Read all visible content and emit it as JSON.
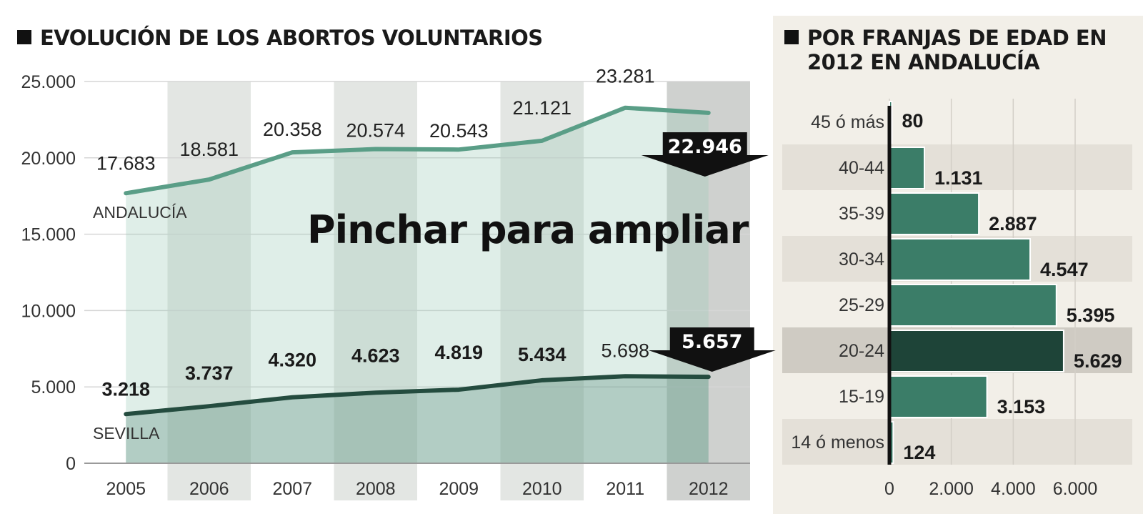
{
  "overlay_text": "Pinchar para ampliar",
  "colors": {
    "andalucia_line": "#5a9e87",
    "sevilla_line": "#244c3f",
    "bar": "#3b7d68",
    "bar_highlight": "#1e4438",
    "right_panel_bg": "#f2efe8"
  },
  "chart_data": [
    {
      "type": "line",
      "title": "EVOLUCIÓN DE LOS ABORTOS VOLUNTARIOS",
      "x": [
        "2005",
        "2006",
        "2007",
        "2008",
        "2009",
        "2010",
        "2011",
        "2012"
      ],
      "ylim": [
        0,
        25000
      ],
      "yticks": [
        "0",
        "5.000",
        "10.000",
        "15.000",
        "20.000",
        "25.000"
      ],
      "grid": true,
      "series": [
        {
          "name": "ANDALUCÍA",
          "values": [
            17683,
            18581,
            20358,
            20574,
            20543,
            21121,
            23281,
            22946
          ],
          "labels": [
            "17.683",
            "18.581",
            "20.358",
            "20.574",
            "20.543",
            "21.121",
            "23.281",
            "22.946"
          ]
        },
        {
          "name": "SEVILLA",
          "values": [
            3218,
            3737,
            4320,
            4623,
            4819,
            5434,
            5698,
            5657
          ],
          "labels": [
            "3.218",
            "3.737",
            "4.320",
            "4.623",
            "4.819",
            "5.434",
            "5.698",
            "5.657"
          ]
        }
      ]
    },
    {
      "type": "bar",
      "orientation": "horizontal",
      "title": "POR FRANJAS DE EDAD EN 2012 EN ANDALUCÍA",
      "categories": [
        "45 ó más",
        "40-44",
        "35-39",
        "30-34",
        "25-29",
        "20-24",
        "15-19",
        "14 ó menos"
      ],
      "values": [
        80,
        1131,
        2887,
        4547,
        5395,
        5629,
        3153,
        124
      ],
      "labels": [
        "80",
        "1.131",
        "2.887",
        "4.547",
        "5.395",
        "5.629",
        "3.153",
        "124"
      ],
      "highlight": "20-24",
      "xlim": [
        0,
        6000
      ],
      "xticks": [
        "0",
        "2.000",
        "4.000",
        "6.000"
      ]
    }
  ]
}
